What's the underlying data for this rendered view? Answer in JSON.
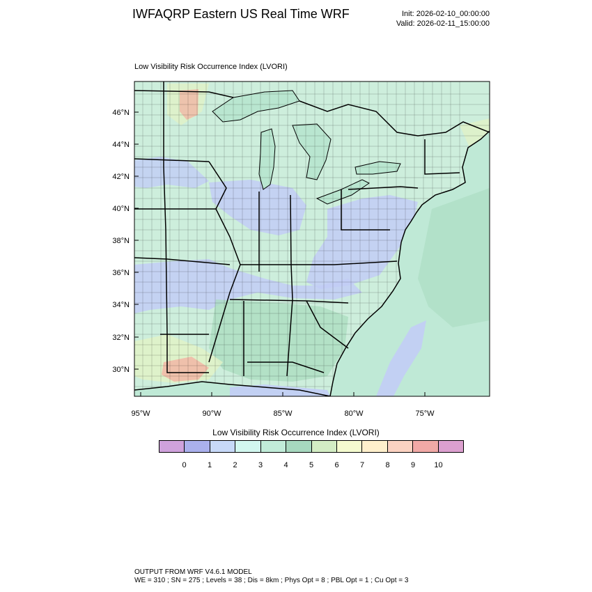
{
  "header": {
    "title": "IWFAQRP Eastern US Real Time WRF",
    "init": "Init: 2026-02-10_00:00:00",
    "valid": "Valid: 2026-02-11_15:00:00"
  },
  "panel": {
    "title": "Low Visibility Risk Occurrence Index   (LVORI)"
  },
  "map": {
    "lat_labels": [
      "46°N",
      "44°N",
      "42°N",
      "40°N",
      "38°N",
      "36°N",
      "34°N",
      "32°N",
      "30°N"
    ],
    "lon_labels": [
      "95°W",
      "90°W",
      "85°W",
      "80°W",
      "75°W"
    ],
    "colors": {
      "ocean": "#bfe9d6",
      "land_base": "#cdeedc",
      "lake": "#b9e6d0",
      "blue_zone": "#c2cdf6",
      "green_zone": "#aadcbf",
      "yellow_zone": "#e2f2c6",
      "red_zone": "#f2b3a3",
      "borders": "#000000"
    }
  },
  "colorbar": {
    "title": "Low Visibility Risk Occurrence Index  (LVORI)",
    "colors": [
      "#cfa2dc",
      "#aab0ec",
      "#c7d9f8",
      "#d2f7ef",
      "#c1ecd9",
      "#a7d8bf",
      "#d3edc4",
      "#f5fbcf",
      "#fff0cc",
      "#fbd2c1",
      "#f1a9a6",
      "#dca0cf"
    ],
    "ticks": [
      "0",
      "1",
      "2",
      "3",
      "4",
      "5",
      "6",
      "7",
      "8",
      "9",
      "10"
    ]
  },
  "footer": {
    "line1": "OUTPUT FROM WRF V4.6.1 MODEL",
    "line2": "WE = 310 ; SN = 275 ; Levels = 38 ; Dis = 8km ; Phys Opt = 8 ; PBL Opt = 1 ; Cu Opt = 3"
  }
}
